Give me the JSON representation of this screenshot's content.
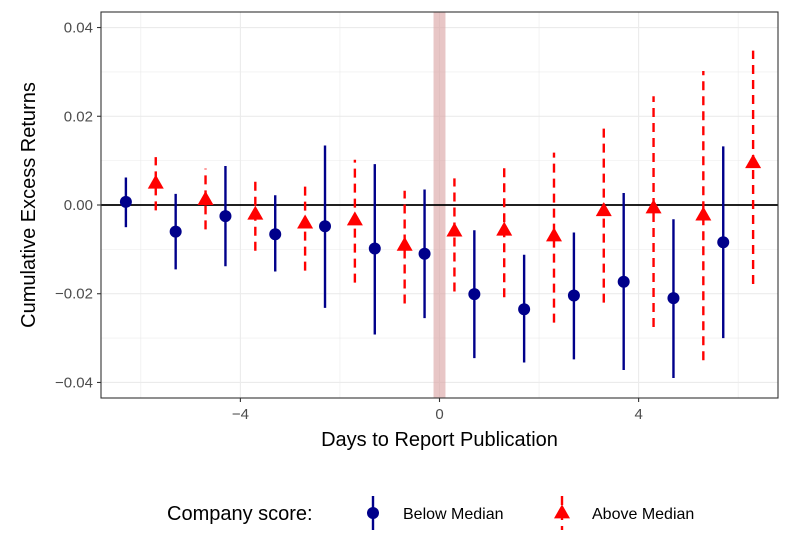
{
  "chart_data": {
    "type": "scatter",
    "title": "",
    "xlabel": "Days to Report Publication",
    "ylabel": "Cumulative Excess Returns",
    "xlim": [
      -6.8,
      6.8
    ],
    "ylim": [
      -0.0435,
      0.0435
    ],
    "x_ticks": [
      -4,
      0,
      4
    ],
    "x_tick_labels": [
      "−4",
      "0",
      "4"
    ],
    "y_ticks": [
      -0.04,
      -0.02,
      0.0,
      0.02,
      0.04
    ],
    "y_tick_labels": [
      "−0.04",
      "−0.02",
      "0.00",
      "0.02",
      "0.04"
    ],
    "grid": true,
    "highlight_x": 0,
    "zero_line_y": 0,
    "legend": {
      "title": "Company score:",
      "position": "bottom"
    },
    "series": [
      {
        "name": "Below Median",
        "color": "#00008b",
        "marker": "circle",
        "line_style": "solid",
        "x": [
          -6,
          -5,
          -4,
          -3,
          -2,
          -1,
          0,
          1,
          2,
          3,
          4,
          5,
          6
        ],
        "y": [
          0.0007,
          -0.006,
          -0.0025,
          -0.0066,
          -0.0048,
          -0.0098,
          -0.011,
          -0.0201,
          -0.0235,
          -0.0204,
          -0.0173,
          -0.021,
          -0.0084
        ],
        "lower": [
          -0.005,
          -0.0145,
          -0.0138,
          -0.015,
          -0.0232,
          -0.0292,
          -0.0255,
          -0.0345,
          -0.0355,
          -0.0348,
          -0.0372,
          -0.039,
          -0.03
        ],
        "upper": [
          0.0062,
          0.0025,
          0.0088,
          0.0022,
          0.0134,
          0.0092,
          0.0035,
          -0.0057,
          -0.0112,
          -0.0062,
          0.0027,
          -0.0032,
          0.0132
        ]
      },
      {
        "name": "Above Median",
        "color": "#ff0000",
        "marker": "triangle",
        "line_style": "dashed",
        "x": [
          -6,
          -5,
          -4,
          -3,
          -2,
          -1,
          0,
          1,
          2,
          3,
          4,
          5,
          6
        ],
        "y": [
          0.0049,
          0.0012,
          -0.0021,
          -0.0041,
          -0.0034,
          -0.0091,
          -0.0059,
          -0.0057,
          -0.007,
          -0.0013,
          -0.0007,
          -0.0023,
          0.0095
        ],
        "lower": [
          -0.0012,
          -0.0055,
          -0.0103,
          -0.0148,
          -0.0175,
          -0.0222,
          -0.0195,
          -0.0208,
          -0.0265,
          -0.022,
          -0.0275,
          -0.035,
          -0.0178
        ],
        "upper": [
          0.0108,
          0.0082,
          0.006,
          0.005,
          0.0102,
          0.0032,
          0.006,
          0.0093,
          0.0118,
          0.0185,
          0.0245,
          0.0302,
          0.0348
        ]
      }
    ]
  }
}
